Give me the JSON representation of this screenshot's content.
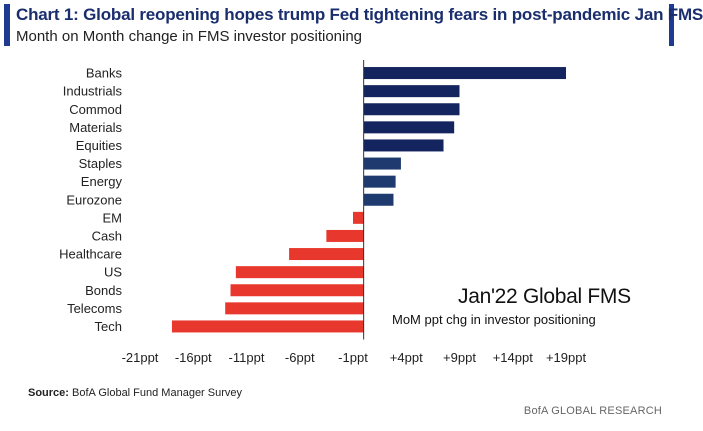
{
  "header": {
    "title": "Chart 1: Global reopening hopes trump Fed tightening fears in post-pandemic Jan FMS",
    "subtitle": "Month on Month change in FMS investor positioning"
  },
  "annotation": {
    "title": "Jan'22 Global FMS",
    "subtitle": "MoM ppt chg in investor positioning"
  },
  "footer": {
    "source_label": "Source:",
    "source_text": "BofA Global Fund Manager Survey",
    "brand": "BofA GLOBAL RESEARCH"
  },
  "colors": {
    "positive_dark": "#14245e",
    "positive_mid": "#1f3a6e",
    "negative": "#e8382e",
    "accent": "#1f3a93"
  },
  "chart_data": {
    "type": "bar",
    "orientation": "horizontal",
    "categories": [
      "Banks",
      "Industrials",
      "Commod",
      "Materials",
      "Equities",
      "Staples",
      "Energy",
      "Eurozone",
      "EM",
      "Cash",
      "Healthcare",
      "US",
      "Bonds",
      "Telecoms",
      "Tech"
    ],
    "values": [
      19,
      9,
      9,
      8.5,
      7.5,
      3.5,
      3,
      2.8,
      -1,
      -3.5,
      -7,
      -12,
      -12.5,
      -13,
      -18
    ],
    "tick_values": [
      -21,
      -16,
      -11,
      -6,
      -1,
      4,
      9,
      14,
      19
    ],
    "tick_labels": [
      "-21ppt",
      "-16ppt",
      "-11ppt",
      "-6ppt",
      "-1ppt",
      "+4ppt",
      "+9ppt",
      "+14ppt",
      "+19ppt"
    ],
    "xlim": [
      -21,
      19
    ],
    "grid": false,
    "legend": "none"
  }
}
